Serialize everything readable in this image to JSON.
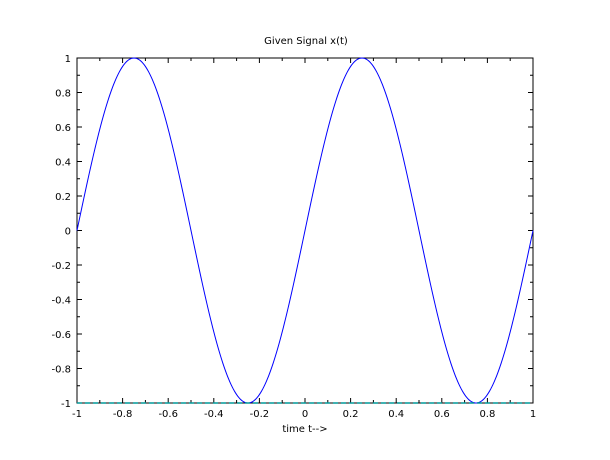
{
  "chart_data": {
    "type": "line",
    "title": "Given Signal x(t)",
    "xlabel": "time t-->",
    "ylabel": "",
    "xlim": [
      -1,
      1
    ],
    "ylim": [
      -1,
      1
    ],
    "grid": false,
    "legend": "none",
    "x_ticks": [
      -1,
      -0.8,
      -0.6,
      -0.4,
      -0.2,
      0,
      0.2,
      0.4,
      0.6,
      0.8,
      1
    ],
    "x_tick_labels": [
      "-1",
      "-0.8",
      "-0.6",
      "-0.4",
      "-0.2",
      "0",
      "0.2",
      "0.4",
      "0.6",
      "0.8",
      "1"
    ],
    "y_ticks": [
      -1,
      -0.8,
      -0.6,
      -0.4,
      -0.2,
      0,
      0.2,
      0.4,
      0.6,
      0.8,
      1
    ],
    "y_tick_labels": [
      "-1",
      "-0.8",
      "-0.6",
      "-0.4",
      "-0.2",
      "0",
      "0.2",
      "0.4",
      "0.6",
      "0.8",
      "1"
    ],
    "series": [
      {
        "function": "sin(2*pi*t)",
        "color": "#0000ff",
        "x": [
          -1,
          -0.9,
          -0.8,
          -0.75,
          -0.7,
          -0.6,
          -0.5,
          -0.4,
          -0.3,
          -0.25,
          -0.2,
          -0.1,
          0,
          0.1,
          0.2,
          0.25,
          0.3,
          0.4,
          0.5,
          0.6,
          0.7,
          0.75,
          0.8,
          0.9,
          1
        ],
        "values": [
          0,
          0.588,
          0.951,
          1,
          0.951,
          0.588,
          0,
          -0.588,
          -0.951,
          -1,
          -0.951,
          -0.588,
          0,
          0.588,
          0.951,
          1,
          0.951,
          0.588,
          0,
          -0.588,
          -0.951,
          -1,
          -0.951,
          -0.588,
          0
        ]
      },
      {
        "color": "#009999",
        "style": "dashed",
        "x": [
          -1,
          1
        ],
        "values": [
          -1,
          -1
        ]
      }
    ]
  }
}
